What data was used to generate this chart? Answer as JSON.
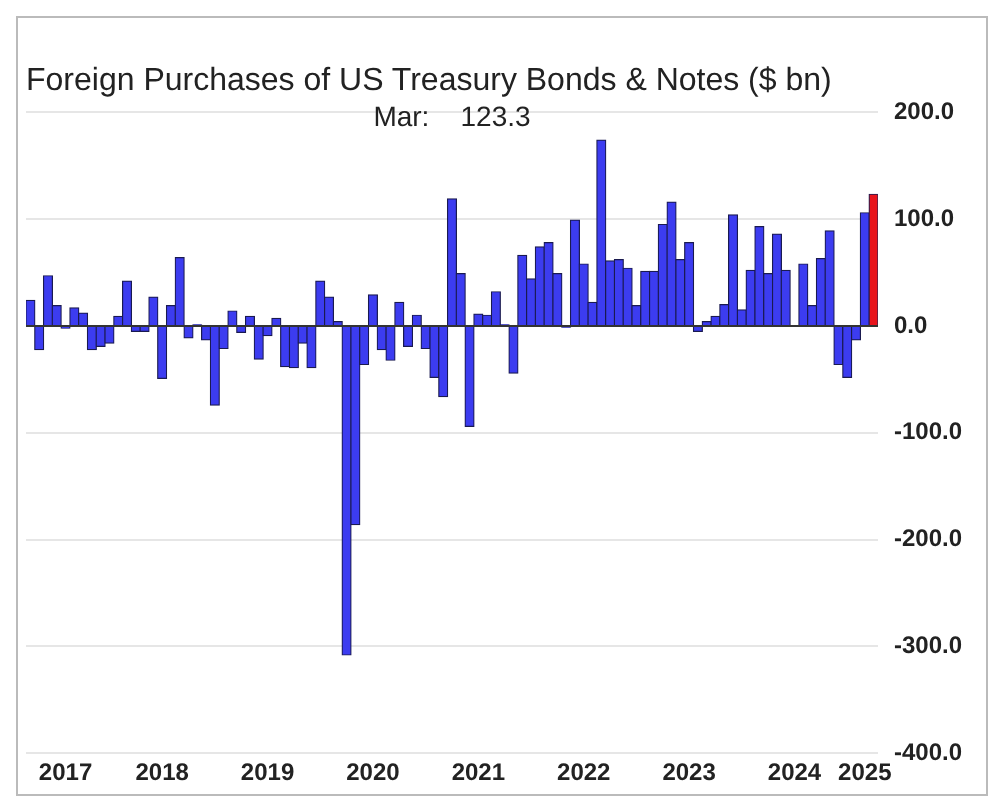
{
  "chart_data": {
    "type": "bar",
    "title": "Foreign Purchases of US Treasury Bonds & Notes ($ bn)",
    "annotations": [
      "Mar:    123.3"
    ],
    "categories": [
      null,
      null,
      null,
      null,
      "2017",
      null,
      null,
      null,
      null,
      null,
      null,
      null,
      null,
      null,
      null,
      "2018",
      null,
      null,
      null,
      null,
      null,
      null,
      null,
      null,
      null,
      null,
      null,
      "2019",
      null,
      null,
      null,
      null,
      null,
      null,
      null,
      null,
      null,
      null,
      null,
      "2020",
      null,
      null,
      null,
      null,
      null,
      null,
      null,
      null,
      null,
      null,
      null,
      "2021",
      null,
      null,
      null,
      null,
      null,
      null,
      null,
      null,
      null,
      null,
      null,
      "2022",
      null,
      null,
      null,
      null,
      null,
      null,
      null,
      null,
      null,
      null,
      null,
      "2023",
      null,
      null,
      null,
      null,
      null,
      null,
      null,
      null,
      null,
      null,
      null,
      "2024",
      null,
      null,
      null,
      null,
      null,
      null,
      null,
      "2025",
      null
    ],
    "values": [
      24,
      -22,
      47,
      19,
      -2,
      17,
      12,
      -22,
      -19,
      -16,
      9,
      42,
      -5,
      -5,
      27,
      -49,
      19,
      64,
      -11,
      1,
      -13,
      -74,
      -21,
      14,
      -6,
      9,
      -31,
      -9,
      7,
      -38,
      -39,
      -16,
      -39,
      42,
      27,
      4,
      -308,
      -186,
      -36,
      29,
      -22,
      -32,
      22,
      -19,
      10,
      -21,
      -48,
      -66,
      119,
      49,
      -94,
      11,
      10,
      32,
      1,
      -44,
      66,
      44,
      74,
      78,
      49,
      -1,
      99,
      58,
      22,
      174,
      61,
      62,
      54,
      19,
      51,
      51,
      95,
      116,
      62,
      78,
      -5,
      4,
      9,
      20,
      104,
      15,
      52,
      93,
      49,
      86,
      52,
      0,
      58,
      19,
      63,
      89,
      -36,
      -48,
      -13,
      106,
      123.3
    ],
    "colors": [
      "#3c3cf0",
      "#3c3cf0",
      "#3c3cf0",
      "#3c3cf0",
      "#3c3cf0",
      "#3c3cf0",
      "#3c3cf0",
      "#3c3cf0",
      "#3c3cf0",
      "#3c3cf0",
      "#3c3cf0",
      "#3c3cf0",
      "#3c3cf0",
      "#3c3cf0",
      "#3c3cf0",
      "#3c3cf0",
      "#3c3cf0",
      "#3c3cf0",
      "#3c3cf0",
      "#3c3cf0",
      "#3c3cf0",
      "#3c3cf0",
      "#3c3cf0",
      "#3c3cf0",
      "#3c3cf0",
      "#3c3cf0",
      "#3c3cf0",
      "#3c3cf0",
      "#3c3cf0",
      "#3c3cf0",
      "#3c3cf0",
      "#3c3cf0",
      "#3c3cf0",
      "#3c3cf0",
      "#3c3cf0",
      "#3c3cf0",
      "#3c3cf0",
      "#3c3cf0",
      "#3c3cf0",
      "#3c3cf0",
      "#3c3cf0",
      "#3c3cf0",
      "#3c3cf0",
      "#3c3cf0",
      "#3c3cf0",
      "#3c3cf0",
      "#3c3cf0",
      "#3c3cf0",
      "#3c3cf0",
      "#3c3cf0",
      "#3c3cf0",
      "#3c3cf0",
      "#3c3cf0",
      "#3c3cf0",
      "#3c3cf0",
      "#3c3cf0",
      "#3c3cf0",
      "#3c3cf0",
      "#3c3cf0",
      "#3c3cf0",
      "#3c3cf0",
      "#3c3cf0",
      "#3c3cf0",
      "#3c3cf0",
      "#3c3cf0",
      "#3c3cf0",
      "#3c3cf0",
      "#3c3cf0",
      "#3c3cf0",
      "#3c3cf0",
      "#3c3cf0",
      "#3c3cf0",
      "#3c3cf0",
      "#3c3cf0",
      "#3c3cf0",
      "#3c3cf0",
      "#3c3cf0",
      "#3c3cf0",
      "#3c3cf0",
      "#3c3cf0",
      "#3c3cf0",
      "#3c3cf0",
      "#3c3cf0",
      "#3c3cf0",
      "#3c3cf0",
      "#3c3cf0",
      "#3c3cf0",
      "#3c3cf0",
      "#3c3cf0",
      "#3c3cf0",
      "#3c3cf0",
      "#3c3cf0",
      "#3c3cf0",
      "#3c3cf0",
      "#3c3cf0",
      "#3c3cf0",
      "#e8141c"
    ],
    "ylim": [
      -400,
      200
    ],
    "yticks": [
      {
        "value": 200,
        "label": "200.0"
      },
      {
        "value": 100,
        "label": "100.0"
      },
      {
        "value": 0,
        "label": "0.0"
      },
      {
        "value": -100,
        "label": "-100.0"
      },
      {
        "value": -200,
        "label": "-200.0"
      },
      {
        "value": -300,
        "label": "-300.0"
      },
      {
        "value": -400,
        "label": "-400.0"
      }
    ],
    "grid": "y"
  }
}
